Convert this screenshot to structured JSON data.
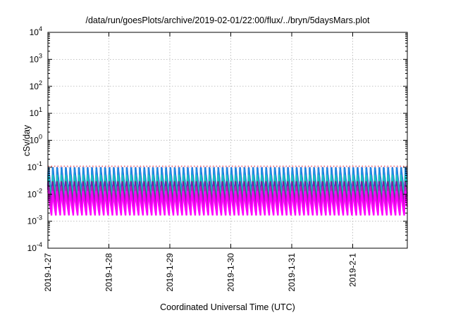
{
  "chart_data": {
    "type": "line",
    "title": "/data/run/goesPlots/archive/2019-02-01/22:00/flux/../bryn/5daysMars.plot",
    "xlabel": "Coordinated Universal Time (UTC)",
    "ylabel": "cSv/day",
    "y_scale": "log",
    "ylim": [
      0.0001,
      10000
    ],
    "xlim": [
      "2019-01-27",
      "2019-02-01 22:00"
    ],
    "grid": true,
    "legend": "none",
    "y_ticks": [
      {
        "base": "10",
        "exp": "-4"
      },
      {
        "base": "10",
        "exp": "-3"
      },
      {
        "base": "10",
        "exp": "-2"
      },
      {
        "base": "10",
        "exp": "-1"
      },
      {
        "base": "10",
        "exp": "0"
      },
      {
        "base": "10",
        "exp": "1"
      },
      {
        "base": "10",
        "exp": "2"
      },
      {
        "base": "10",
        "exp": "3"
      },
      {
        "base": "10",
        "exp": "4"
      }
    ],
    "x_ticks": [
      "2019-1-27",
      "2019-1-28",
      "2019-1-29",
      "2019-1-30",
      "2019-1-31",
      "2019-2-1"
    ],
    "pattern": {
      "description": "sawtooth rise and decay, roughly 14 cycles per day",
      "cycles_per_day": 14
    },
    "series": [
      {
        "color": "#1a3ad6",
        "peak": 0.12,
        "trough": 0.009
      },
      {
        "color": "#1f8fe0",
        "peak": 0.1,
        "trough": 0.008
      },
      {
        "color": "#1bbfbf",
        "peak": 0.06,
        "trough": 0.007
      },
      {
        "color": "#2e8b57",
        "peak": 0.035,
        "trough": 0.005
      },
      {
        "color": "#7a1fa2",
        "peak": 0.03,
        "trough": 0.004
      },
      {
        "color": "#c218c2",
        "peak": 0.022,
        "trough": 0.003
      },
      {
        "color": "#ff00ff",
        "peak": 0.016,
        "trough": 0.0016
      },
      {
        "color": "#e8142c",
        "peak": 0.11,
        "trough": 0.11
      }
    ]
  }
}
